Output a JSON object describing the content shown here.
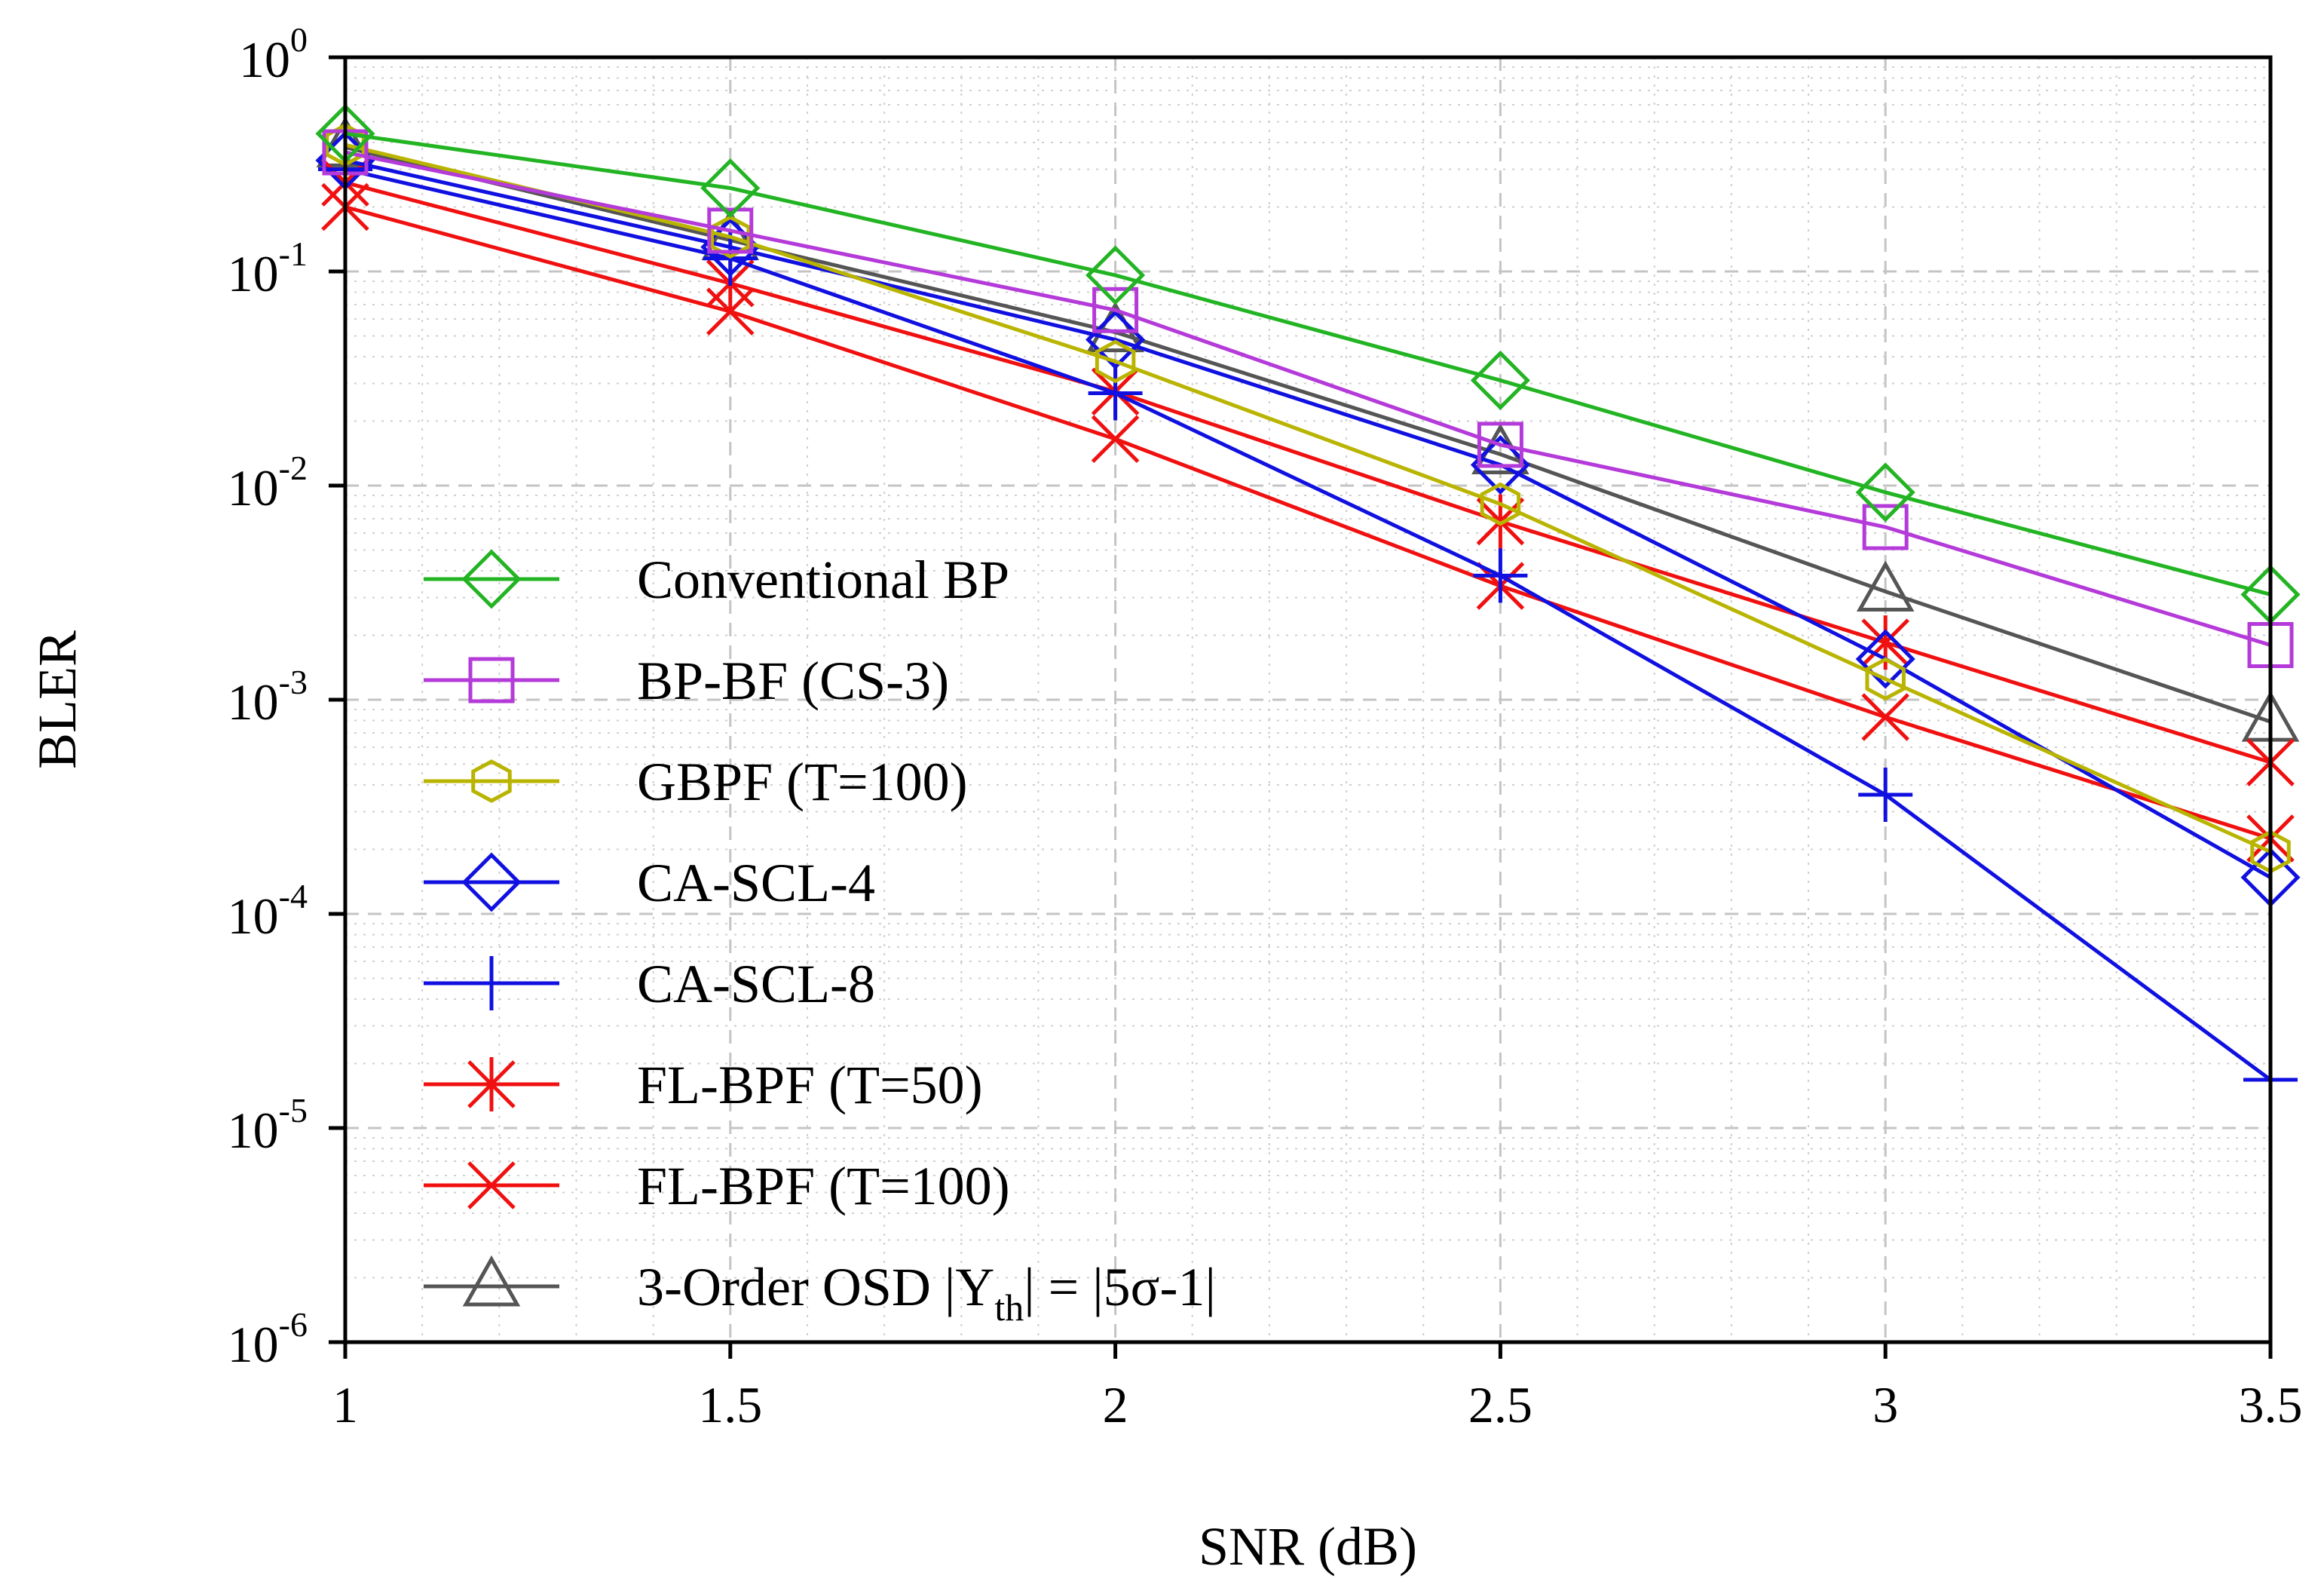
{
  "chart_data": {
    "type": "line",
    "title": "",
    "xlabel": "SNR (dB)",
    "ylabel": "BLER",
    "yscale": "log",
    "xlim": [
      1,
      3.5
    ],
    "ylim_exponents": [
      -6,
      0
    ],
    "grid": true,
    "legend_position": "lower-left",
    "x": [
      1,
      1.5,
      2,
      2.5,
      3,
      3.5
    ],
    "x_tick_labels": [
      "1",
      "1.5",
      "2",
      "2.5",
      "3",
      "3.5"
    ],
    "y_tick_labels": [
      {
        "base": "10",
        "exp": "0",
        "exponent": 0
      },
      {
        "base": "10",
        "exp": "-1",
        "exponent": -1
      },
      {
        "base": "10",
        "exp": "-2",
        "exponent": -2
      },
      {
        "base": "10",
        "exp": "-3",
        "exponent": -3
      },
      {
        "base": "10",
        "exp": "-4",
        "exponent": -4
      },
      {
        "base": "10",
        "exp": "-5",
        "exponent": -5
      },
      {
        "base": "10",
        "exp": "-6",
        "exponent": -6
      }
    ],
    "series": [
      {
        "id": "conventional-bp",
        "name": "Conventional BP",
        "color": "#22b422",
        "marker": "diamond",
        "values": [
          0.44,
          0.245,
          0.096,
          0.031,
          0.0093,
          0.0031
        ]
      },
      {
        "id": "bp-bf-cs3",
        "name": "BP-BF (CS-3)",
        "color": "#b43ad9",
        "marker": "square",
        "values": [
          0.36,
          0.155,
          0.066,
          0.0155,
          0.0064,
          0.0018
        ]
      },
      {
        "id": "gbpf-t100",
        "name": "GBPF (T=100)",
        "color": "#b9b400",
        "marker": "hexagon",
        "values": [
          0.39,
          0.145,
          0.038,
          0.0082,
          0.00125,
          0.000195
        ]
      },
      {
        "id": "ca-scl-4",
        "name": "CA-SCL-4",
        "color": "#1010e0",
        "marker": "diamond",
        "values": [
          0.33,
          0.13,
          0.048,
          0.0125,
          0.00155,
          0.000148
        ]
      },
      {
        "id": "ca-scl-8",
        "name": "CA-SCL-8",
        "color": "#1010e0",
        "marker": "plus",
        "values": [
          0.3,
          0.115,
          0.027,
          0.0038,
          0.00036,
          1.68e-05
        ]
      },
      {
        "id": "fl-bpf-t50",
        "name": "FL-BPF (T=50)",
        "color": "#f01010",
        "marker": "asterisk",
        "values": [
          0.26,
          0.088,
          0.0275,
          0.0068,
          0.00185,
          0.00051
        ]
      },
      {
        "id": "fl-bpf-t100",
        "name": "FL-BPF (T=100)",
        "color": "#f01010",
        "marker": "x",
        "values": [
          0.2,
          0.065,
          0.0165,
          0.0034,
          0.00083,
          0.000225
        ]
      },
      {
        "id": "osd-3order",
        "name": "3-Order OSD |Y_th| = |5σ-1|",
        "color": "#555555",
        "marker": "triangle",
        "values": [
          0.38,
          0.14,
          0.052,
          0.014,
          0.0032,
          0.00079
        ]
      }
    ],
    "legend": [
      {
        "label": "Conventional BP"
      },
      {
        "label": "BP-BF (CS-3)"
      },
      {
        "label": "GBPF (T=100)"
      },
      {
        "label": "CA-SCL-4"
      },
      {
        "label": "CA-SCL-8"
      },
      {
        "label": "FL-BPF (T=50)"
      },
      {
        "label": "FL-BPF (T=100)"
      },
      {
        "label": "3-Order OSD |Y",
        "sub": "th",
        "suffix": "| = |5σ-1|"
      }
    ]
  }
}
